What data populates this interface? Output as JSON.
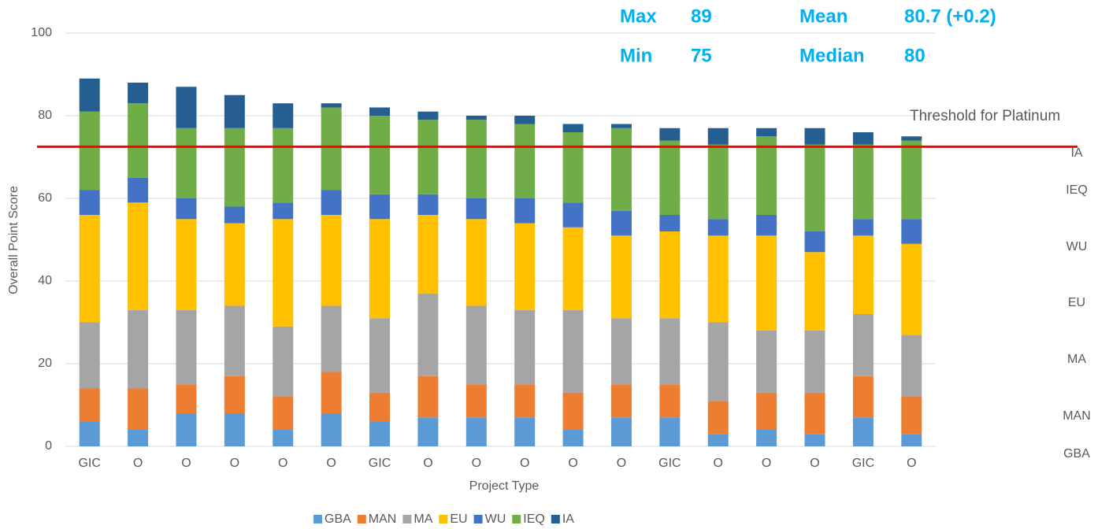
{
  "chart_data": {
    "type": "stacked_bar",
    "x_label": "Project Type",
    "y_label": "Overall Point Score",
    "categories": [
      "GIC",
      "O",
      "O",
      "O",
      "O",
      "O",
      "GIC",
      "O",
      "O",
      "O",
      "O",
      "O",
      "GIC",
      "O",
      "O",
      "O",
      "GIC",
      "O"
    ],
    "series": [
      {
        "name": "GBA",
        "color": "#5b9bd5",
        "values": [
          6,
          4,
          8,
          8,
          4,
          8,
          6,
          7,
          7,
          7,
          4,
          7,
          7,
          3,
          4,
          3,
          7,
          3
        ]
      },
      {
        "name": "MAN",
        "color": "#ed7d31",
        "values": [
          8,
          10,
          7,
          9,
          8,
          10,
          7,
          10,
          8,
          8,
          9,
          8,
          8,
          8,
          9,
          10,
          10,
          9
        ]
      },
      {
        "name": "MA",
        "color": "#a5a5a5",
        "values": [
          16,
          19,
          18,
          17,
          17,
          16,
          18,
          20,
          19,
          18,
          20,
          16,
          16,
          19,
          15,
          15,
          15,
          15
        ]
      },
      {
        "name": "EU",
        "color": "#ffc000",
        "values": [
          26,
          26,
          22,
          20,
          26,
          22,
          24,
          19,
          21,
          21,
          20,
          20,
          21,
          21,
          23,
          19,
          19,
          22
        ]
      },
      {
        "name": "WU",
        "color": "#4472c4",
        "values": [
          6,
          6,
          5,
          4,
          4,
          6,
          6,
          5,
          5,
          6,
          6,
          6,
          4,
          4,
          5,
          5,
          4,
          6
        ]
      },
      {
        "name": "IEQ",
        "color": "#70ad47",
        "values": [
          19,
          18,
          17,
          19,
          18,
          20,
          19,
          18,
          19,
          18,
          17,
          20,
          18,
          18,
          19,
          21,
          18,
          19
        ]
      },
      {
        "name": "IA",
        "color": "#255e91",
        "values": [
          8,
          5,
          10,
          8,
          6,
          1,
          2,
          2,
          1,
          2,
          2,
          1,
          3,
          4,
          2,
          4,
          3,
          1
        ]
      }
    ],
    "ylim": [
      0,
      100
    ],
    "yticks": [
      0,
      20,
      40,
      60,
      80,
      100
    ],
    "grid": true,
    "threshold": {
      "label": "Threshold for Platinum",
      "value": 72.5,
      "color": "#ff0000"
    },
    "stats": [
      [
        "Max",
        "89"
      ],
      [
        "Mean",
        "80.7 (+0.2)"
      ],
      [
        "Min",
        "75"
      ],
      [
        "Median",
        "80"
      ]
    ]
  }
}
